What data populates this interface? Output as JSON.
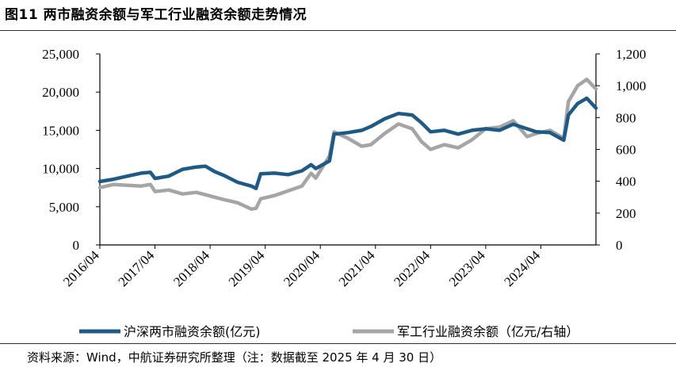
{
  "title": "图11 两市融资余额与军工行业融资余额走势情况",
  "source": "资料来源：Wind，中航证券研究所整理（注：数据截至 2025 年 4 月 30 日）",
  "chart_data": {
    "type": "line",
    "left_axis": {
      "ticks": [
        "25,000",
        "20,000",
        "15,000",
        "10,000",
        "5,000",
        "0"
      ],
      "ylim": [
        0,
        25000
      ]
    },
    "right_axis": {
      "ticks": [
        "1,200",
        "1,000",
        "800",
        "600",
        "400",
        "200",
        "0"
      ],
      "ylim": [
        0,
        1200
      ]
    },
    "x_ticks": [
      "2016/04",
      "2017/04",
      "2018/04",
      "2019/04",
      "2020/04",
      "2021/04",
      "2022/04",
      "2023/04",
      "2024/04"
    ],
    "x_range": [
      "2016/04",
      "2025/04"
    ],
    "grid": false,
    "legend_position": "bottom",
    "series": [
      {
        "name": "沪深两市融资余额(亿元)",
        "axis": "left",
        "color": "#1f5a84",
        "points": [
          [
            "2016/04",
            8300
          ],
          [
            "2016/07",
            8600
          ],
          [
            "2016/10",
            9000
          ],
          [
            "2017/01",
            9400
          ],
          [
            "2017/03",
            9500
          ],
          [
            "2017/04",
            8700
          ],
          [
            "2017/07",
            9000
          ],
          [
            "2017/10",
            9900
          ],
          [
            "2018/01",
            10200
          ],
          [
            "2018/03",
            10300
          ],
          [
            "2018/05",
            9600
          ],
          [
            "2018/07",
            9100
          ],
          [
            "2018/10",
            8200
          ],
          [
            "2019/01",
            7700
          ],
          [
            "2019/02",
            7400
          ],
          [
            "2019/03",
            9300
          ],
          [
            "2019/06",
            9400
          ],
          [
            "2019/09",
            9200
          ],
          [
            "2019/12",
            9700
          ],
          [
            "2020/02",
            10500
          ],
          [
            "2020/03",
            10000
          ],
          [
            "2020/06",
            11000
          ],
          [
            "2020/07",
            14500
          ],
          [
            "2020/10",
            14700
          ],
          [
            "2021/01",
            15000
          ],
          [
            "2021/03",
            15500
          ],
          [
            "2021/06",
            16500
          ],
          [
            "2021/09",
            17200
          ],
          [
            "2021/12",
            17000
          ],
          [
            "2022/02",
            16000
          ],
          [
            "2022/04",
            14800
          ],
          [
            "2022/07",
            15000
          ],
          [
            "2022/10",
            14500
          ],
          [
            "2023/01",
            15000
          ],
          [
            "2023/04",
            15200
          ],
          [
            "2023/07",
            15000
          ],
          [
            "2023/10",
            15800
          ],
          [
            "2024/01",
            15200
          ],
          [
            "2024/03",
            14800
          ],
          [
            "2024/06",
            14700
          ],
          [
            "2024/09",
            13700
          ],
          [
            "2024/10",
            17000
          ],
          [
            "2024/12",
            18500
          ],
          [
            "2025/02",
            19200
          ],
          [
            "2025/04",
            17900
          ]
        ]
      },
      {
        "name": "军工行业融资余额（亿元/右轴）",
        "axis": "right",
        "color": "#a5a5a5",
        "points": [
          [
            "2016/04",
            360
          ],
          [
            "2016/07",
            380
          ],
          [
            "2016/10",
            375
          ],
          [
            "2017/01",
            370
          ],
          [
            "2017/03",
            380
          ],
          [
            "2017/04",
            335
          ],
          [
            "2017/07",
            345
          ],
          [
            "2017/10",
            320
          ],
          [
            "2018/01",
            330
          ],
          [
            "2018/03",
            315
          ],
          [
            "2018/05",
            300
          ],
          [
            "2018/07",
            285
          ],
          [
            "2018/10",
            265
          ],
          [
            "2019/01",
            225
          ],
          [
            "2019/02",
            230
          ],
          [
            "2019/03",
            290
          ],
          [
            "2019/06",
            310
          ],
          [
            "2019/09",
            340
          ],
          [
            "2019/12",
            370
          ],
          [
            "2020/02",
            450
          ],
          [
            "2020/03",
            420
          ],
          [
            "2020/06",
            560
          ],
          [
            "2020/07",
            710
          ],
          [
            "2020/10",
            670
          ],
          [
            "2021/01",
            620
          ],
          [
            "2021/03",
            630
          ],
          [
            "2021/06",
            700
          ],
          [
            "2021/09",
            760
          ],
          [
            "2021/12",
            730
          ],
          [
            "2022/02",
            650
          ],
          [
            "2022/04",
            600
          ],
          [
            "2022/07",
            630
          ],
          [
            "2022/10",
            610
          ],
          [
            "2023/01",
            660
          ],
          [
            "2023/04",
            730
          ],
          [
            "2023/07",
            740
          ],
          [
            "2023/10",
            780
          ],
          [
            "2024/01",
            680
          ],
          [
            "2024/03",
            700
          ],
          [
            "2024/06",
            720
          ],
          [
            "2024/09",
            670
          ],
          [
            "2024/10",
            900
          ],
          [
            "2024/12",
            1000
          ],
          [
            "2025/02",
            1040
          ],
          [
            "2025/04",
            980
          ]
        ]
      }
    ]
  }
}
